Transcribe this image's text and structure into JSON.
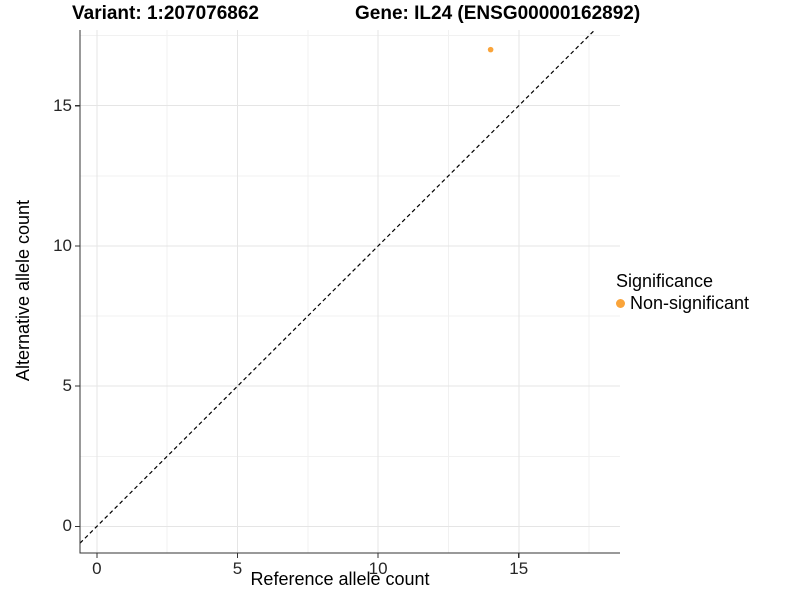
{
  "header": {
    "variant_title": "Variant: 1:207076862",
    "gene_title": "Gene: IL24 (ENSG00000162892)"
  },
  "legend": {
    "title": "Significance",
    "items": [
      {
        "label": "Non-significant",
        "color": "#FAA43A",
        "marker": "circle-icon"
      }
    ]
  },
  "colors": {
    "point_orange": "#FAA43A",
    "axis_line": "#333333",
    "tick_text": "#262626",
    "major_grid": "#E5E5E5",
    "minor_grid": "#F1F1F1",
    "reference_line": "#000000",
    "background": "#FFFFFF"
  },
  "chart_data": {
    "type": "scatter",
    "title": "Variant: 1:207076862   Gene: IL24 (ENSG00000162892)",
    "xlabel": "Reference allele count",
    "ylabel": "Alternative allele count",
    "xlim": [
      -0.6,
      18.6
    ],
    "ylim": [
      -0.95,
      17.7
    ],
    "xticks": [
      0,
      5,
      10,
      15
    ],
    "yticks": [
      0,
      5,
      10,
      15
    ],
    "minor_xticks": [
      2.5,
      7.5,
      12.5,
      17.5
    ],
    "minor_yticks": [
      2.5,
      7.5,
      12.5,
      17.5
    ],
    "grid": true,
    "legend_position": "right-middle",
    "series": [
      {
        "name": "Non-significant",
        "color": "#FAA43A",
        "points": [
          {
            "x": 14,
            "y": 17
          }
        ]
      }
    ],
    "reference_line": {
      "type": "identity",
      "slope": 1,
      "intercept": 0,
      "style": "dashed",
      "color": "#000000"
    }
  }
}
